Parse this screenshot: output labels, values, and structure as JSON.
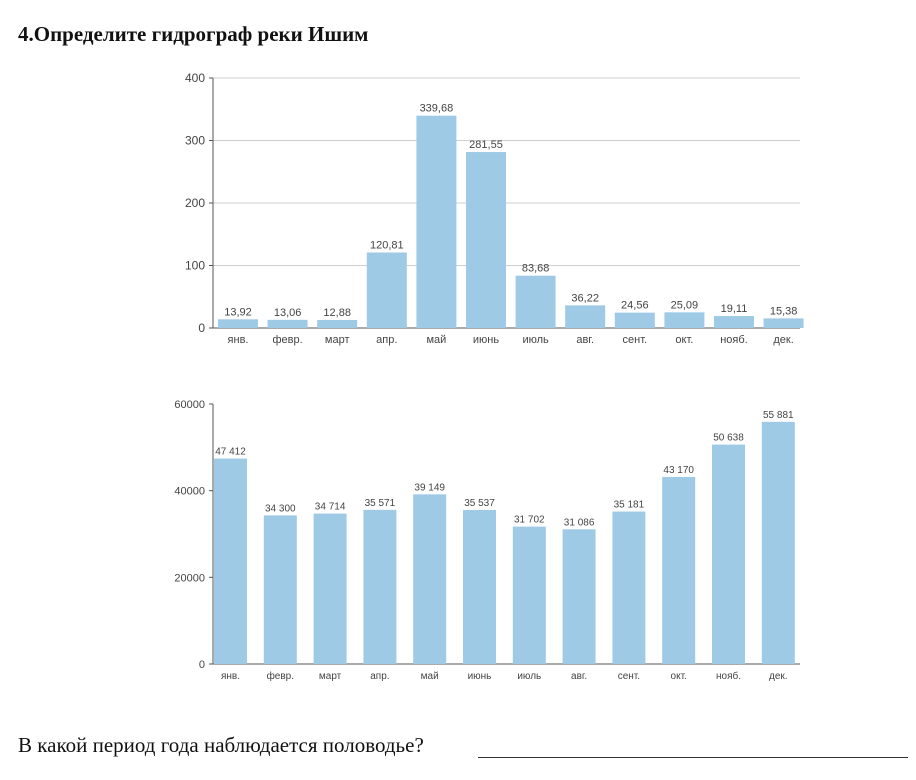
{
  "title": "4.Определите гидрограф реки Ишим",
  "question": "В какой период года наблюдается половодье?",
  "colors": {
    "bar": "#9ecae6",
    "grid": "#cfcfcf",
    "axis": "#555555",
    "text": "#444444"
  },
  "chart_data": [
    {
      "type": "bar",
      "categories": [
        "янв.",
        "февр.",
        "март",
        "апр.",
        "май",
        "июнь",
        "июль",
        "авг.",
        "сент.",
        "окт.",
        "нояб.",
        "дек."
      ],
      "values": [
        13.92,
        13.06,
        12.88,
        120.81,
        339.68,
        281.55,
        83.68,
        36.22,
        24.56,
        25.09,
        19.11,
        15.38
      ],
      "labels": [
        "13,92",
        "13,06",
        "12,88",
        "120,81",
        "339,68",
        "281,55",
        "83,68",
        "36,22",
        "24,56",
        "25,09",
        "19,11",
        "15,38"
      ],
      "yticks": [
        "0",
        "100",
        "200",
        "300",
        "400"
      ],
      "ylim": [
        0,
        400
      ],
      "grid": true
    },
    {
      "type": "bar",
      "categories": [
        "янв.",
        "февр.",
        "март",
        "апр.",
        "май",
        "июнь",
        "июль",
        "авг.",
        "сент.",
        "окт.",
        "нояб.",
        "дек."
      ],
      "values": [
        47412,
        34300,
        34714,
        35571,
        39149,
        35537,
        31702,
        31086,
        35181,
        43170,
        50638,
        55881
      ],
      "labels": [
        "47 412",
        "34 300",
        "34 714",
        "35 571",
        "39 149",
        "35 537",
        "31 702",
        "31 086",
        "35 181",
        "43 170",
        "50 638",
        "55 881"
      ],
      "yticks": [
        "0",
        "20000",
        "40000",
        "60000"
      ],
      "ylim": [
        0,
        60000
      ],
      "grid": false
    }
  ]
}
